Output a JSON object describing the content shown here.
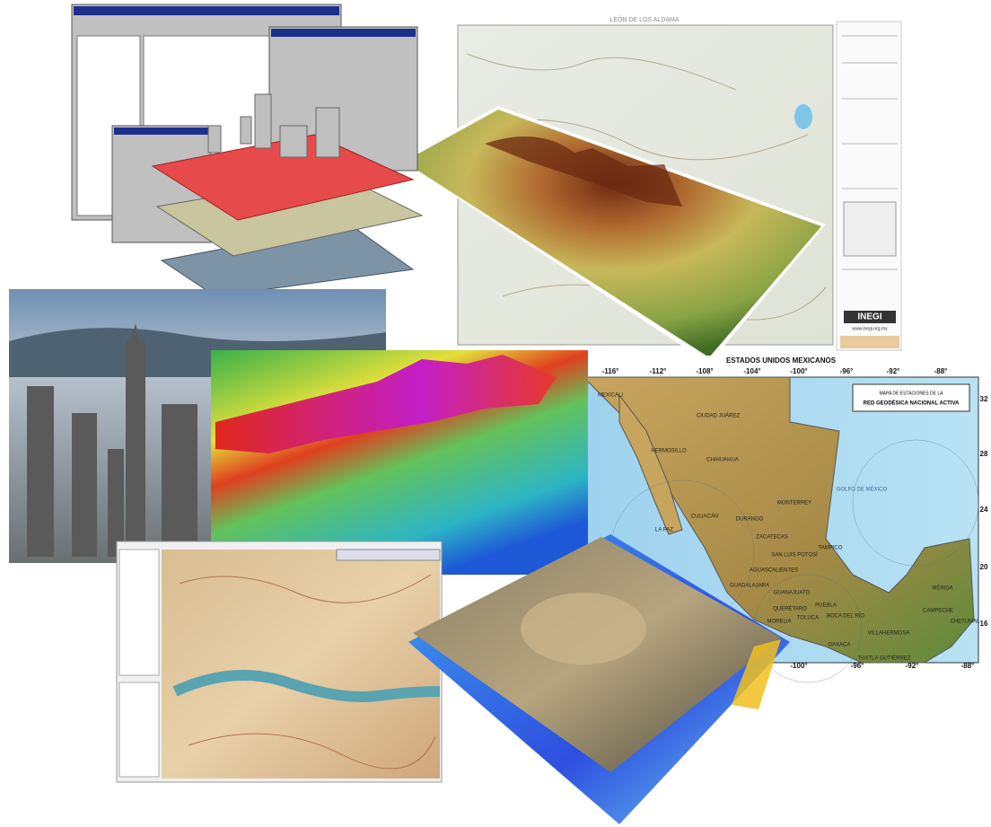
{
  "topo_map": {
    "title": "LEÓN DE LOS ALDAMA",
    "logo": "INEGI",
    "url": "www.inegi.org.mx"
  },
  "mexico_map": {
    "country": "ESTADOS UNIDOS MEXICANOS",
    "title_line1": "MAPA DE ESTACIONES DE LA",
    "title_line2": "RED GEODÉSICA NACIONAL ACTIVA",
    "top_longitudes": [
      "-116°",
      "-112°",
      "-108°",
      "-104°",
      "-100°",
      "-96°",
      "-92°",
      "-88°"
    ],
    "bottom_longitudes": [
      "-100°",
      "-96°",
      "-92°",
      "-88°"
    ],
    "latitudes": [
      "32",
      "28",
      "24",
      "20",
      "16"
    ],
    "gulf": "GOLFO DE MÉXICO",
    "cities": [
      "MEXICALI",
      "CIUDAD JUÁREZ",
      "HERMOSILLO",
      "CHIHUAHUA",
      "CULIACÁN",
      "DURANGO",
      "LA PAZ",
      "MONTERREY",
      "ZACATECAS",
      "TAMPICO",
      "SAN LUIS POTOSÍ",
      "AGUASCALIENTES",
      "GUADALAJARA",
      "GUANAJUATO",
      "QUERÉTARO",
      "MORELIA",
      "TOLUCA",
      "PUEBLA",
      "BOCA DEL RÍO",
      "OAXACA",
      "VILLAHERMOSA",
      "TUXTLA GUTIÉRREZ",
      "MÉRIDA",
      "CAMPECHE",
      "CHETUMAL"
    ]
  }
}
